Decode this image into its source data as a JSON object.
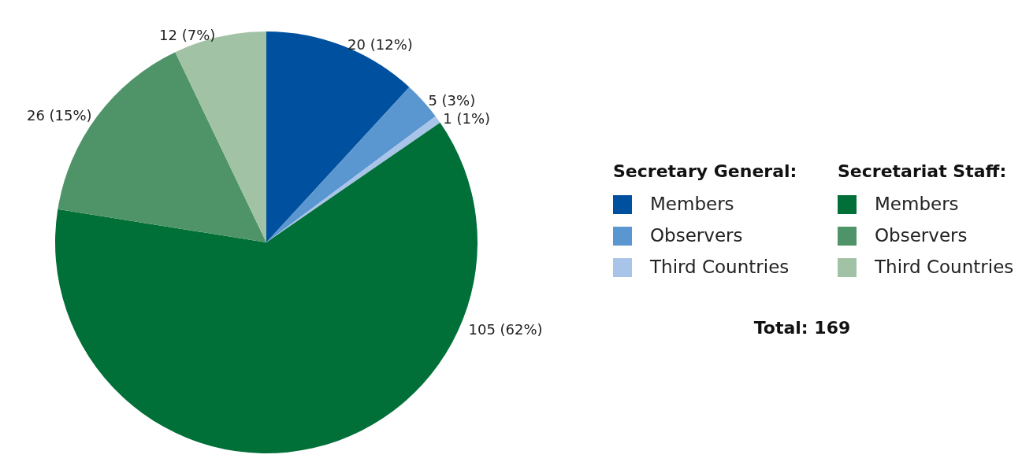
{
  "chart_data": {
    "type": "pie",
    "categories": [
      "Members",
      "Observers",
      "Third Countries",
      "Members",
      "Observers",
      "Third Countries"
    ],
    "values": [
      20,
      5,
      1,
      105,
      26,
      12
    ],
    "colors": [
      "#0050a0",
      "#5a96d0",
      "#a8c4e8",
      "#007038",
      "#4f9468",
      "#a2c2a6"
    ],
    "value_labels": [
      "20 (12%)",
      "5 (3%)",
      "1 (1%)",
      "105 (62%)",
      "26 (15%)",
      "12 (7%)"
    ],
    "annotations": [
      "Secretary General:",
      "Secretariat Staff:",
      "Total: 169"
    ],
    "legend": "right"
  }
}
